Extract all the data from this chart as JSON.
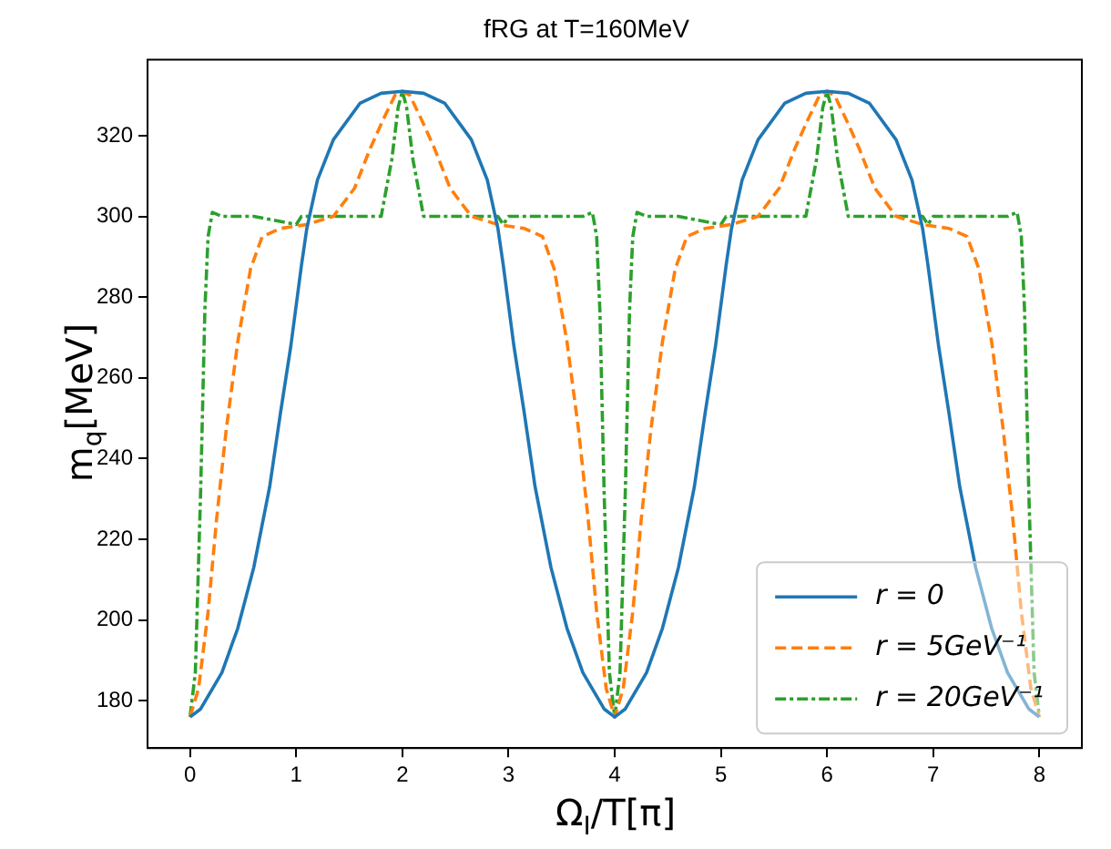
{
  "chart_data": {
    "type": "line",
    "title": "fRG at T=160MeV",
    "xlabel": "Ω$_{I}$/T[π]",
    "ylabel": "m$_{q}$[MeV]",
    "xlim": [
      -0.4,
      8.4
    ],
    "xticks": [
      0,
      1,
      2,
      3,
      4,
      5,
      6,
      7,
      8
    ],
    "ylim": [
      168.3,
      338.8
    ],
    "yticks": [
      180,
      200,
      220,
      240,
      260,
      280,
      300,
      320
    ],
    "grid": false,
    "legend": "bottom right",
    "marker": "none",
    "series": [
      {
        "name": "r = 0",
        "color": "#1f77b4",
        "line_style": "solid",
        "x": [
          0,
          0.1,
          0.3,
          0.45,
          0.6,
          0.75,
          0.85,
          0.95,
          1.05,
          1.1,
          1.2,
          1.35,
          1.6,
          1.8,
          2,
          2.2,
          2.4,
          2.65,
          2.8,
          2.9,
          2.95,
          3.05,
          3.15,
          3.25,
          3.4,
          3.55,
          3.7,
          3.9,
          4,
          4.1,
          4.3,
          4.45,
          4.6,
          4.75,
          4.85,
          4.95,
          5.05,
          5.1,
          5.2,
          5.35,
          5.6,
          5.8,
          6,
          6.2,
          6.4,
          6.65,
          6.8,
          6.9,
          6.95,
          7.05,
          7.15,
          7.25,
          7.4,
          7.55,
          7.7,
          7.9,
          8
        ],
        "values": [
          176,
          178,
          187,
          198,
          213,
          233,
          251,
          268,
          288,
          297,
          309,
          319,
          328,
          330.5,
          331,
          330.5,
          328,
          319,
          309,
          297,
          288,
          268,
          251,
          233,
          213,
          198,
          187,
          178,
          176,
          178,
          187,
          198,
          213,
          233,
          251,
          268,
          288,
          297,
          309,
          319,
          328,
          330.5,
          331,
          330.5,
          328,
          319,
          309,
          297,
          288,
          268,
          251,
          233,
          213,
          198,
          187,
          178,
          176
        ]
      },
      {
        "name": "r = 5GeV⁻¹",
        "color": "#ff7f0e",
        "line_style": "dashed",
        "x": [
          0,
          0.08,
          0.17,
          0.25,
          0.34,
          0.45,
          0.57,
          0.68,
          0.85,
          1.1,
          1.35,
          1.55,
          1.7,
          1.82,
          1.93,
          2,
          2.07,
          2.18,
          2.3,
          2.45,
          2.65,
          2.9,
          3.15,
          3.32,
          3.43,
          3.55,
          3.66,
          3.75,
          3.83,
          3.92,
          4,
          4.08,
          4.17,
          4.25,
          4.34,
          4.45,
          4.57,
          4.68,
          4.85,
          5.1,
          5.35,
          5.55,
          5.7,
          5.82,
          5.93,
          6,
          6.07,
          6.18,
          6.3,
          6.45,
          6.65,
          6.9,
          7.15,
          7.32,
          7.43,
          7.55,
          7.66,
          7.75,
          7.83,
          7.92,
          8
        ],
        "values": [
          176,
          183,
          202,
          225,
          247,
          269,
          287,
          295,
          297,
          298,
          300,
          307,
          317,
          324,
          330,
          331,
          330,
          324,
          317,
          307,
          300,
          298,
          297,
          295,
          287,
          269,
          247,
          225,
          202,
          183,
          176,
          183,
          202,
          225,
          247,
          269,
          287,
          295,
          297,
          298,
          300,
          307,
          317,
          324,
          330,
          331,
          330,
          324,
          317,
          307,
          300,
          298,
          297,
          295,
          287,
          269,
          247,
          225,
          202,
          183,
          176
        ]
      },
      {
        "name": "r = 20GeV⁻¹",
        "color": "#2ca02c",
        "line_style": "dashdot",
        "x": [
          0,
          0.05,
          0.1,
          0.14,
          0.17,
          0.21,
          0.3,
          0.6,
          1,
          1.05,
          1.1,
          1.5,
          1.8,
          1.9,
          1.96,
          2,
          2.04,
          2.1,
          2.2,
          2.5,
          2.9,
          2.95,
          3,
          3.4,
          3.7,
          3.79,
          3.83,
          3.86,
          3.9,
          3.95,
          4,
          4.05,
          4.1,
          4.14,
          4.17,
          4.21,
          4.3,
          4.6,
          5,
          5.05,
          5.1,
          5.5,
          5.8,
          5.9,
          5.96,
          6,
          6.04,
          6.1,
          6.2,
          6.5,
          6.9,
          6.95,
          7,
          7.4,
          7.7,
          7.79,
          7.83,
          7.86,
          7.9,
          7.95,
          8
        ],
        "values": [
          176,
          187,
          232,
          277,
          295,
          301,
          300,
          300,
          298,
          300,
          300,
          300,
          300,
          314,
          327,
          331,
          327,
          314,
          300,
          300,
          300,
          298,
          300,
          300,
          300,
          301,
          295,
          277,
          232,
          187,
          176,
          187,
          232,
          277,
          295,
          301,
          300,
          300,
          298,
          300,
          300,
          300,
          300,
          314,
          327,
          331,
          327,
          314,
          300,
          300,
          300,
          298,
          300,
          300,
          300,
          301,
          295,
          277,
          232,
          187,
          176
        ]
      }
    ]
  }
}
